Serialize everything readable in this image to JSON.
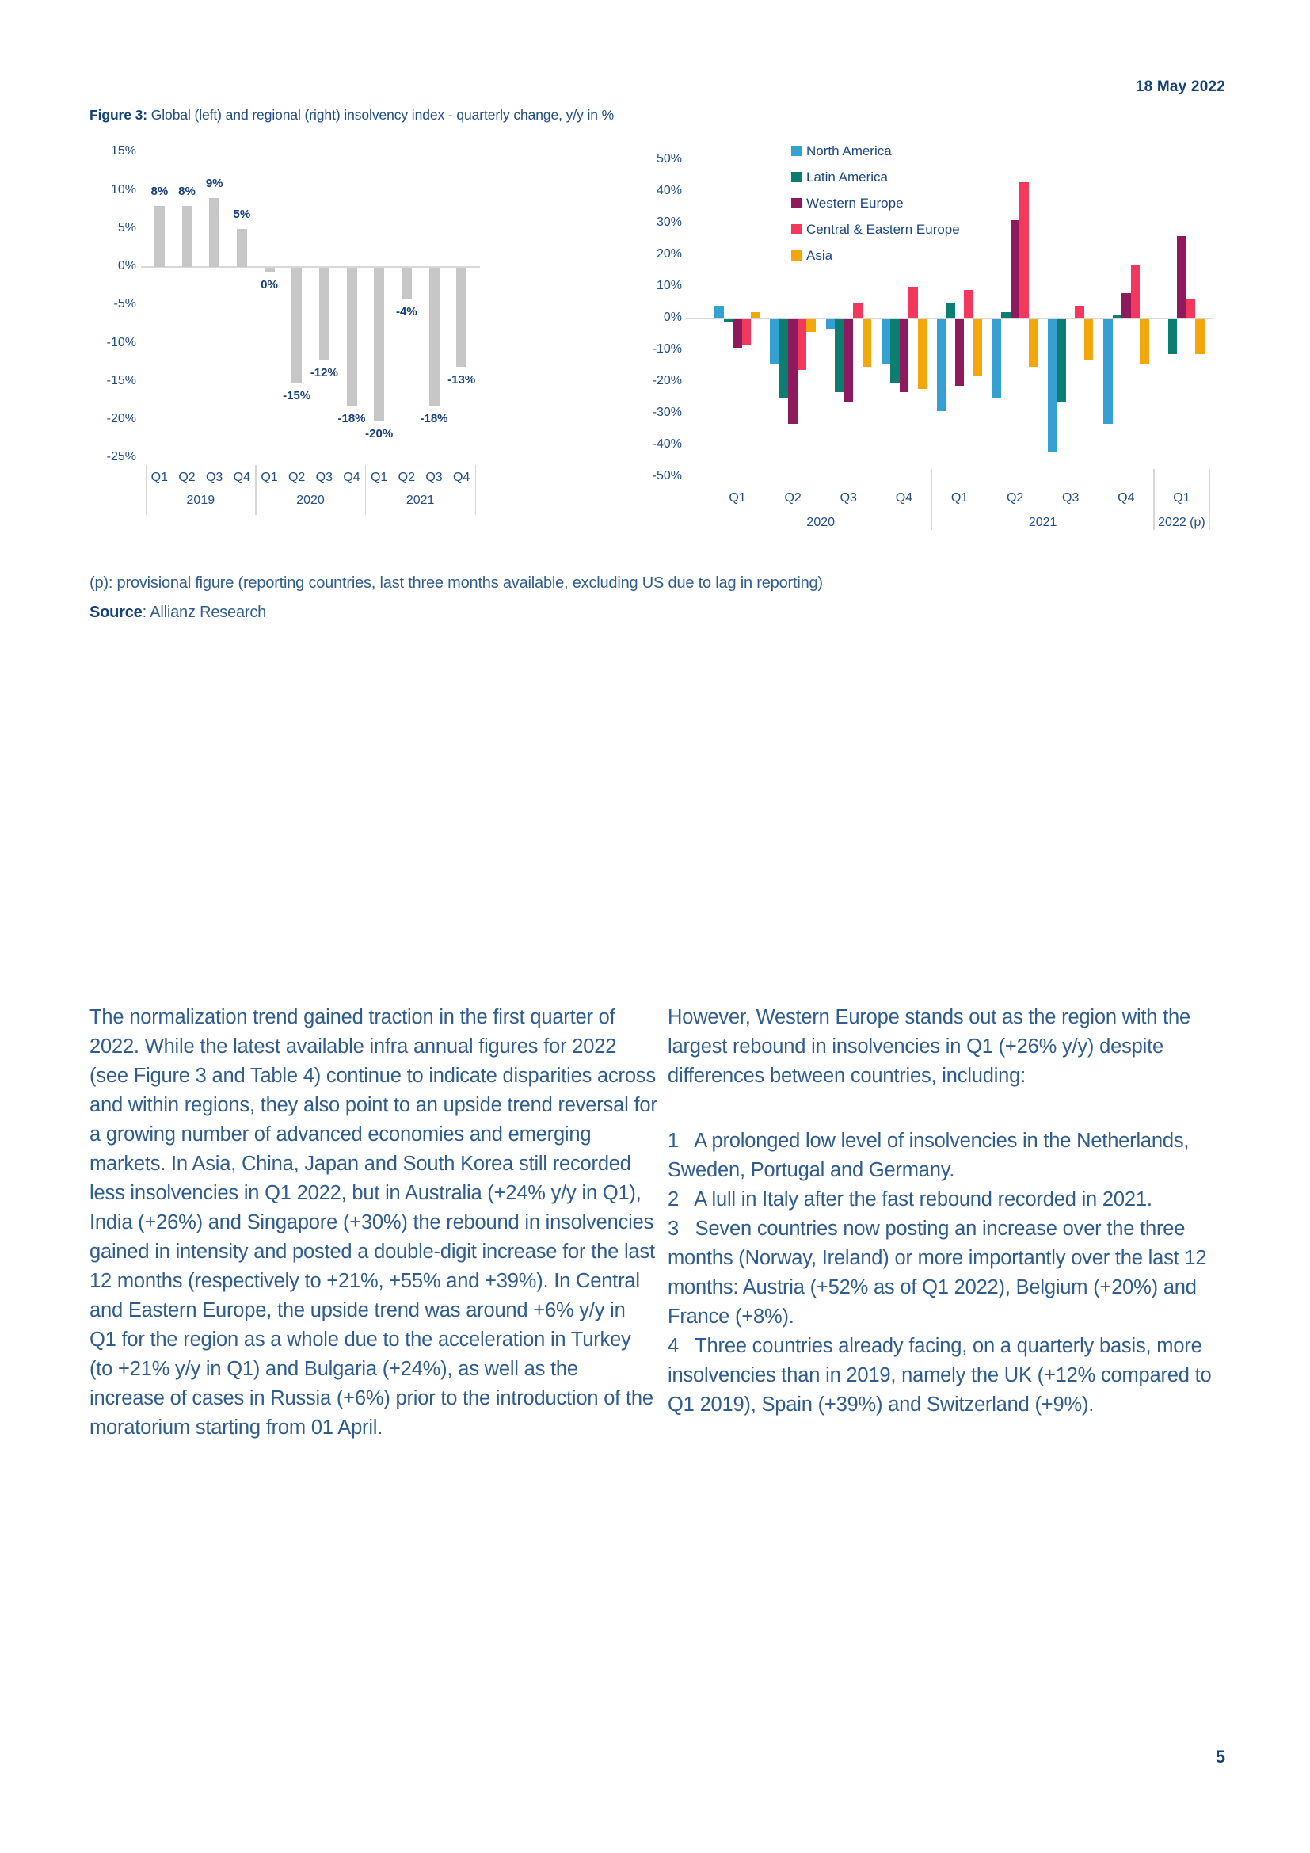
{
  "page": {
    "date": "18 May 2022",
    "figure_label": "Figure 3:",
    "figure_caption": " Global (left) and regional (right) insolvency index - quarterly change, y/y in %",
    "footnote": "(p): provisional figure (reporting countries, last three months available, excluding US due to lag in reporting)",
    "source_label": "Source",
    "source_suffix": ": Allianz Research",
    "page_number": "5"
  },
  "colors": {
    "navy_dark": "#14407C",
    "navy_text": "#2F5C8F",
    "axis_text": "#1F4C87",
    "grey_bar": "#C7C7C7",
    "axis_line": "#D8D8D8"
  },
  "chart_data": [
    {
      "type": "bar",
      "title": "Global insolvency index - quarterly change, y/y in %",
      "categories": [
        "Q1",
        "Q2",
        "Q3",
        "Q4",
        "Q1",
        "Q2",
        "Q3",
        "Q4",
        "Q1",
        "Q2",
        "Q3",
        "Q4"
      ],
      "year_groups": [
        {
          "label": "2019",
          "quarters": 4
        },
        {
          "label": "2020",
          "quarters": 4
        },
        {
          "label": "2021",
          "quarters": 4
        }
      ],
      "values": [
        8,
        8,
        9,
        5,
        0,
        -15,
        -12,
        -18,
        -20,
        -4,
        -18,
        -13
      ],
      "bar_labels": [
        "8%",
        "8%",
        "9%",
        "5%",
        "0%",
        "-15%",
        "-12%",
        "-18%",
        "-20%",
        "-4%",
        "-18%",
        "-13%"
      ],
      "ylim": [
        -25,
        15
      ],
      "yticks": [
        15,
        10,
        5,
        0,
        -5,
        -10,
        -15,
        -20,
        -25
      ],
      "bar_color": "#C7C7C7",
      "grid": false,
      "legend": false
    },
    {
      "type": "bar",
      "title": "Regional insolvency index - quarterly change, y/y in %",
      "categories": [
        "Q1",
        "Q2",
        "Q3",
        "Q4",
        "Q1",
        "Q2",
        "Q3",
        "Q4",
        "Q1"
      ],
      "year_groups": [
        {
          "label": "2020",
          "quarters": 4
        },
        {
          "label": "2021",
          "quarters": 4
        },
        {
          "label": "2022 (p)",
          "quarters": 1
        }
      ],
      "series": [
        {
          "name": "North America",
          "color": "#35A1D2",
          "values": [
            4,
            -14,
            -3,
            -14,
            -29,
            -25,
            -42,
            -33,
            null
          ]
        },
        {
          "name": "Latin America",
          "color": "#0B7E71",
          "values": [
            -1,
            -25,
            -23,
            -20,
            5,
            2,
            -26,
            1,
            -11
          ]
        },
        {
          "name": "Western Europe",
          "color": "#8E1A5D",
          "values": [
            -9,
            -33,
            -26,
            -23,
            -21,
            31,
            0,
            8,
            26
          ]
        },
        {
          "name": "Central & Eastern Europe",
          "color": "#F2395D",
          "values": [
            -8,
            -16,
            5,
            10,
            9,
            43,
            4,
            17,
            6
          ]
        },
        {
          "name": "Asia",
          "color": "#F3A70B",
          "values": [
            2,
            -4,
            -15,
            -22,
            -18,
            -15,
            -13,
            -14,
            -11
          ]
        }
      ],
      "ylim": [
        -50,
        50
      ],
      "yticks": [
        50,
        40,
        30,
        20,
        10,
        0,
        -10,
        -20,
        -30,
        -40,
        -50
      ],
      "grid": false,
      "legend_position": "top-inside-left"
    }
  ],
  "body": {
    "left_paragraph": "The normalization trend gained traction in the first quarter of 2022. While the latest available infra annual figures for 2022 (see Figure 3 and Table 4) continue to indicate disparities across and within regions, they also point to an upside trend reversal for a growing number of advanced economies and emerging markets. In Asia, China, Japan and South Korea still recorded less insolvencies in Q1 2022, but in Australia (+24% y/y in Q1), India (+26%) and Singapore (+30%) the rebound in insolvencies gained in intensity and posted a double-digit increase for the last 12 months (respectively to +21%, +55% and +39%). In Central and Eastern Europe, the upside trend was around +6% y/y in Q1 for the region as a whole due to the acceleration in Turkey (to +21% y/y in Q1) and Bulgaria (+24%), as well as the increase of cases in Russia (+6%) prior to the introduction of the moratorium starting from 01 April.",
    "right_intro": "However, Western Europe stands out as the region with the largest rebound in insolvencies in Q1 (+26% y/y) despite differences between countries, including:",
    "list_items": [
      "1   A prolonged low level of insolvencies in the Netherlands, Sweden, Portugal and Germany.",
      "2   A lull in Italy after the fast rebound recorded in 2021.",
      "3   Seven countries now posting an increase over the three months (Norway, Ireland) or more importantly over the last 12 months: Austria (+52% as of Q1 2022), Belgium (+20%) and France (+8%).",
      "4   Three countries already facing, on a quarterly basis, more insolvencies than in 2019, namely the UK (+12% compared to Q1 2019), Spain (+39%) and Switzerland (+9%)."
    ]
  }
}
